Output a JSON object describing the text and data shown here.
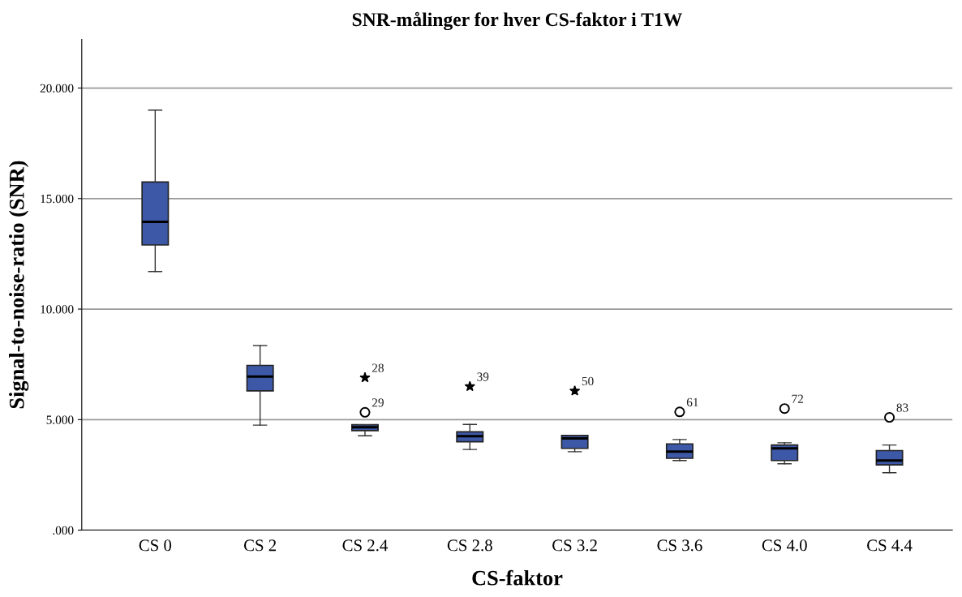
{
  "chart_data": {
    "type": "box",
    "title": "SNR-målinger for hver CS-faktor i T1W",
    "xlabel": "CS-faktor",
    "ylabel": "Signal-to-noise-ratio (SNR)",
    "categories": [
      "CS 0",
      "CS 2",
      "CS 2.4",
      "CS 2.8",
      "CS 3.2",
      "CS 3.6",
      "CS 4.0",
      "CS 4.4"
    ],
    "series": [
      {
        "color": "#3e58a8",
        "boxes": [
          {
            "low": 11.7,
            "q1": 12.9,
            "median": 13.95,
            "q3": 15.75,
            "high": 19.0
          },
          {
            "low": 4.75,
            "q1": 6.3,
            "median": 6.95,
            "q3": 7.45,
            "high": 8.35
          },
          {
            "low": 4.27,
            "q1": 4.5,
            "median": 4.65,
            "q3": 4.77,
            "high": 4.77
          },
          {
            "low": 3.65,
            "q1": 4.0,
            "median": 4.25,
            "q3": 4.45,
            "high": 4.78
          },
          {
            "low": 3.55,
            "q1": 3.7,
            "median": 4.15,
            "q3": 4.28,
            "high": 4.28
          },
          {
            "low": 3.15,
            "q1": 3.25,
            "median": 3.55,
            "q3": 3.9,
            "high": 4.1
          },
          {
            "low": 3.0,
            "q1": 3.15,
            "median": 3.7,
            "q3": 3.85,
            "high": 3.95
          },
          {
            "low": 2.6,
            "q1": 2.95,
            "median": 3.15,
            "q3": 3.6,
            "high": 3.85
          }
        ]
      },
      {
        "type": "scatter",
        "color": "#000000",
        "marker": "star",
        "x": [
          "CS 2.4",
          "CS 2.8",
          "CS 3.2"
        ],
        "values": [
          6.9,
          6.5,
          6.3
        ]
      },
      {
        "type": "scatter",
        "color": "#000000",
        "marker": "circle",
        "x": [
          "CS 2.4",
          "CS 3.6",
          "CS 4.0",
          "CS 4.4"
        ],
        "values": [
          5.33,
          5.35,
          5.5,
          5.1
        ]
      }
    ],
    "annotations": [
      {
        "text": "28",
        "x": "CS 2.4",
        "y": 6.9
      },
      {
        "text": "29",
        "x": "CS 2.4",
        "y": 5.33
      },
      {
        "text": "39",
        "x": "CS 2.8",
        "y": 6.5
      },
      {
        "text": "50",
        "x": "CS 3.2",
        "y": 6.3
      },
      {
        "text": "61",
        "x": "CS 3.6",
        "y": 5.35
      },
      {
        "text": "72",
        "x": "CS 4.0",
        "y": 5.5
      },
      {
        "text": "83",
        "x": "CS 4.4",
        "y": 5.1
      }
    ],
    "ylim": [
      0,
      22.2
    ],
    "yticks": [
      {
        "value": 0,
        "label": ".000"
      },
      {
        "value": 5,
        "label": "5.000"
      },
      {
        "value": 10,
        "label": "10.000"
      },
      {
        "value": 15,
        "label": "15.000"
      },
      {
        "value": 20,
        "label": "20.000"
      }
    ],
    "grid": "y"
  }
}
